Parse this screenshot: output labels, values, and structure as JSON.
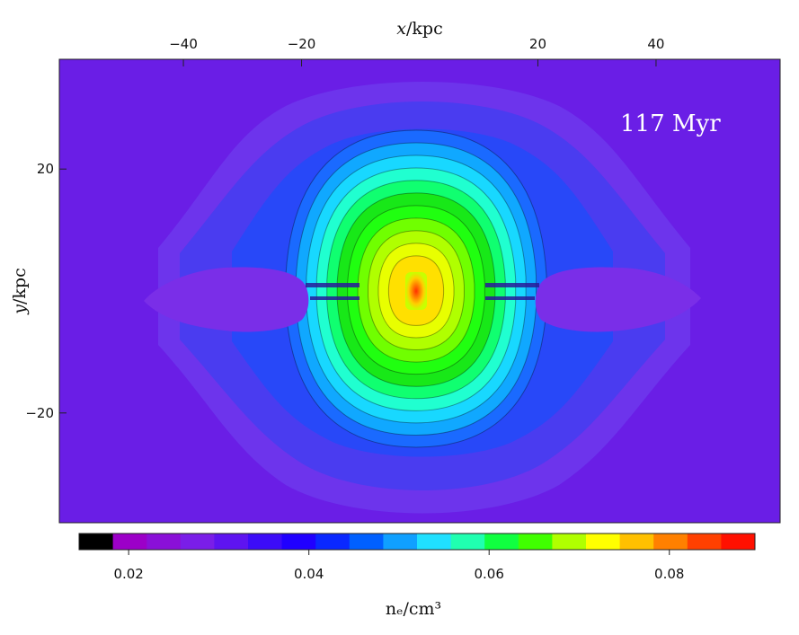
{
  "chart_data": {
    "type": "heatmap",
    "annotation": "117 Myr",
    "x_axis": {
      "label_var": "x",
      "label_unit": "/kpc",
      "position": "top",
      "range": [
        -61,
        61
      ],
      "ticks": [
        -40,
        -20,
        20,
        40
      ],
      "tick_labels": [
        "−40",
        "−20",
        "20",
        "40"
      ]
    },
    "y_axis": {
      "label_var": "y",
      "label_unit": "/kpc",
      "position": "left",
      "range": [
        -38,
        38
      ],
      "ticks": [
        20,
        -20
      ],
      "tick_labels": [
        "20",
        "−20"
      ]
    },
    "colorbar": {
      "label": "nₑ/cm³",
      "range": [
        0.0145,
        0.0895
      ],
      "ticks": [
        0.02,
        0.04,
        0.06,
        0.08
      ],
      "tick_labels": [
        "0.02",
        "0.04",
        "0.06",
        "0.08"
      ],
      "colors": [
        "#000000",
        "#9c00c8",
        "#8a10d8",
        "#7a1ee8",
        "#5e14f0",
        "#3c0cf8",
        "#2000ff",
        "#0a28ff",
        "#0060ff",
        "#10a0ff",
        "#20e0ff",
        "#20ffb0",
        "#10ff40",
        "#40ff00",
        "#b0ff00",
        "#ffff00",
        "#ffc000",
        "#ff8000",
        "#ff4000",
        "#ff1000"
      ]
    },
    "field": {
      "background_ne": 0.024,
      "outer_shell_ne": 0.027,
      "shell_interior_ne": 0.035,
      "central_peak_ne": 0.085,
      "inner_lobe_ne": 0.03
    }
  }
}
